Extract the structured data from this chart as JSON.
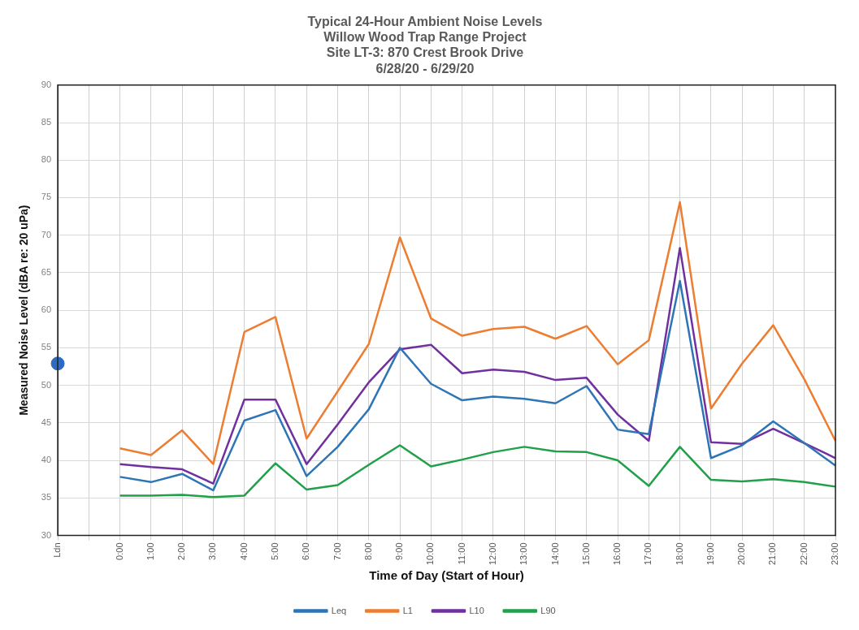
{
  "chart_data": {
    "type": "line",
    "title": [
      "Typical 24-Hour Ambient Noise Levels",
      "Willow Wood Trap Range Project",
      "Site LT-3: 870 Crest Brook Drive",
      "6/28/20 - 6/29/20"
    ],
    "xlabel": "Time of Day (Start of Hour)",
    "ylabel": "Measured Noise Level (dBA re: 20 uPa)",
    "categories": [
      "Ldn",
      null,
      "0:00",
      "1:00",
      "2:00",
      "3:00",
      "4:00",
      "5:00",
      "6:00",
      "7:00",
      "8:00",
      "9:00",
      "10:00",
      "11:00",
      "12:00",
      "13:00",
      "14:00",
      "15:00",
      "16:00",
      "17:00",
      "18:00",
      "19:00",
      "20:00",
      "21:00",
      "22:00",
      "23:00"
    ],
    "series": [
      {
        "name": "Leq",
        "color": "#2e75b6",
        "values": [
          null,
          null,
          37.8,
          37.1,
          38.2,
          36.0,
          45.3,
          46.7,
          37.9,
          41.8,
          46.8,
          55.0,
          50.2,
          48.0,
          48.5,
          48.2,
          47.6,
          49.9,
          44.1,
          43.5,
          63.9,
          40.3,
          42.0,
          45.2,
          42.3,
          39.3
        ]
      },
      {
        "name": "L1",
        "color": "#ed7d31",
        "values": [
          null,
          null,
          41.6,
          40.7,
          44.0,
          39.5,
          57.1,
          59.1,
          42.9,
          49.2,
          55.5,
          69.7,
          58.9,
          56.6,
          57.5,
          57.8,
          56.2,
          57.9,
          52.8,
          56.0,
          74.4,
          46.9,
          52.9,
          58.0,
          50.8,
          42.6
        ]
      },
      {
        "name": "L10",
        "color": "#7030a0",
        "values": [
          null,
          null,
          39.5,
          39.1,
          38.8,
          36.9,
          48.1,
          48.1,
          39.5,
          44.8,
          50.4,
          54.8,
          55.4,
          51.6,
          52.1,
          51.8,
          50.7,
          51.0,
          46.1,
          42.6,
          68.3,
          42.4,
          42.2,
          44.2,
          42.3,
          40.3
        ]
      },
      {
        "name": "L90",
        "color": "#21a04a",
        "values": [
          null,
          null,
          35.3,
          35.3,
          35.4,
          35.1,
          35.3,
          39.6,
          36.1,
          36.7,
          39.4,
          42.0,
          39.2,
          40.1,
          41.1,
          41.8,
          41.2,
          41.1,
          40.0,
          36.6,
          41.8,
          37.4,
          37.2,
          37.5,
          37.1,
          36.5
        ]
      },
      {
        "type": "scatter",
        "color": "#2e6bc0",
        "x": [
          "Ldn"
        ],
        "values": [
          52.9
        ],
        "marker": "circle"
      }
    ],
    "ylim": [
      30,
      90
    ],
    "yticks": [
      30,
      35,
      40,
      45,
      50,
      55,
      60,
      65,
      70,
      75,
      80,
      85,
      90
    ],
    "grid": true,
    "legend": "bottom",
    "marker": "none",
    "line_style": "solid"
  }
}
